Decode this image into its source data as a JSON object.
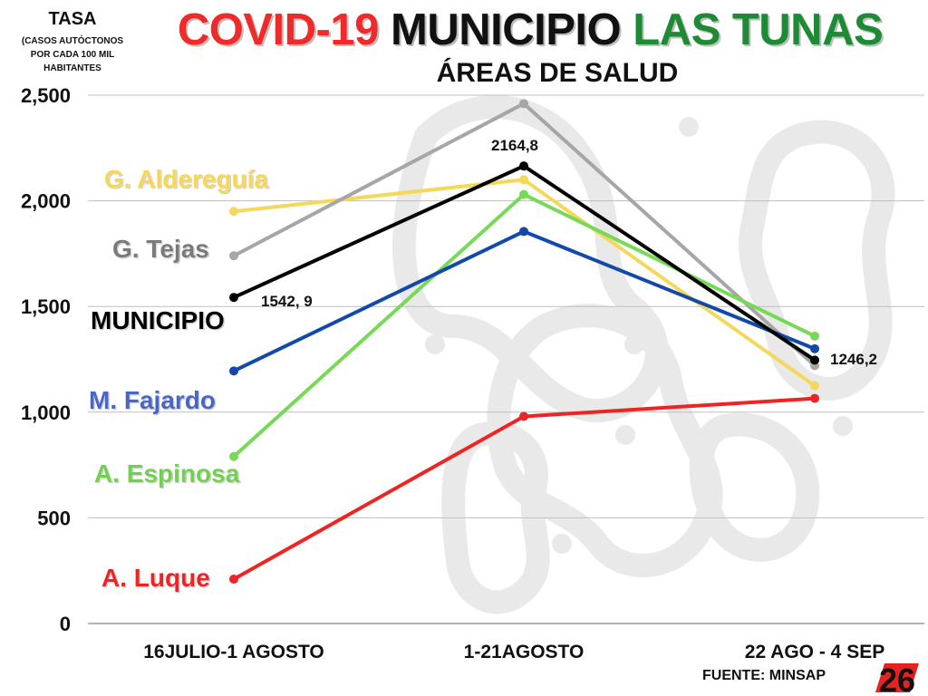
{
  "title": {
    "part1": "COVID-19",
    "part2": "MUNICIPIO",
    "part3": "LAS TUNAS",
    "colors": [
      "#ee2a2a",
      "#111111",
      "#1d8b34"
    ]
  },
  "subtitle": "ÁREAS DE SALUD",
  "ylabel": {
    "main": "TASA",
    "sub": "(CASOS AUTÓCTONOS POR CADA 100 MIL HABITANTES"
  },
  "source": "FUENTE: MINSAP",
  "logo_text": "26",
  "chart_data": {
    "type": "line",
    "categories": [
      "16JULIO-1 AGOSTO",
      "1-21AGOSTO",
      "22 AGO - 4 SEP"
    ],
    "ylim": [
      0,
      2500
    ],
    "yticks": [
      0,
      500,
      1000,
      1500,
      2000,
      2500
    ],
    "ytick_labels": [
      "0",
      "500",
      "1,000",
      "1,500",
      "2,000",
      "2,500"
    ],
    "grid": true,
    "series": [
      {
        "name": "G. Aldereguía",
        "color": "#f4d85a",
        "values": [
          1950,
          2100,
          1125
        ]
      },
      {
        "name": "G. Tejas",
        "color": "#a6a6a6",
        "values": [
          1740,
          2460,
          1220
        ]
      },
      {
        "name": "A. Espinosa",
        "color": "#77d957",
        "values": [
          790,
          2030,
          1360
        ]
      },
      {
        "name": "M. Fajardo",
        "color": "#1349a9",
        "values": [
          1195,
          1855,
          1300
        ]
      },
      {
        "name": "A. Luque",
        "color": "#ee2424",
        "values": [
          210,
          980,
          1065
        ]
      },
      {
        "name": "MUNICIPIO",
        "color": "#000000",
        "values": [
          1542.9,
          2164.8,
          1246.2
        ]
      }
    ],
    "series_label_colors": {
      "G. Aldereguía": "#f6d658",
      "G. Tejas": "#7a7a7a",
      "A. Espinosa": "#6fd14f",
      "M. Fajardo": "#4a67bf",
      "A. Luque": "#ee2424",
      "MUNICIPIO": "#000000"
    },
    "annotations": [
      "1542, 9",
      "2164,8",
      "1246,2"
    ]
  }
}
